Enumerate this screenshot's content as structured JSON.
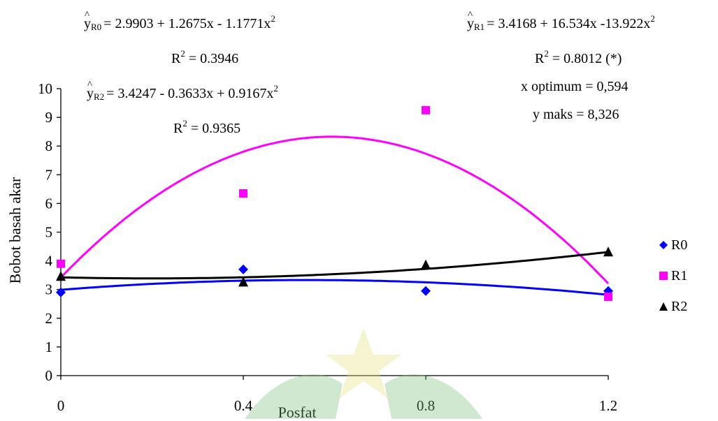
{
  "chart_data": {
    "type": "scatter",
    "xlabel": "Posfat",
    "ylabel": "Bobot basah akar",
    "x_ticks": [
      "0",
      "0.4",
      "0.8",
      "1.2"
    ],
    "y_ticks": [
      "0",
      "1",
      "2",
      "3",
      "4",
      "5",
      "6",
      "7",
      "8",
      "9",
      "10"
    ],
    "xlim": [
      0,
      1.2
    ],
    "ylim": [
      0,
      10
    ],
    "legend_position": "right",
    "grid": false,
    "x": [
      0,
      0.4,
      0.8,
      1.2
    ],
    "series": [
      {
        "name": "R0",
        "marker": "diamond",
        "color": "#0000ff",
        "values": [
          2.9,
          3.7,
          2.95,
          2.95
        ],
        "trend": {
          "intercept": 2.9903,
          "linear": 1.2675,
          "quadratic": -1.1771
        }
      },
      {
        "name": "R1",
        "marker": "square",
        "color": "#ff00ff",
        "values": [
          3.9,
          6.35,
          9.25,
          2.75
        ],
        "trend": {
          "intercept": 3.4168,
          "linear": 16.534,
          "quadratic": -13.922
        }
      },
      {
        "name": "R2",
        "marker": "triangle",
        "color": "#000000",
        "values": [
          3.45,
          3.25,
          3.85,
          4.3
        ],
        "trend": {
          "intercept": 3.4247,
          "linear": -0.3633,
          "quadratic": 0.9167
        }
      }
    ],
    "annotations": {
      "r0_eq": {
        "sub": "R0",
        "text": "= 2.9903 + 1.2675x - 1.1771x",
        "sup": "2"
      },
      "r0_r2": {
        "text": "= 0.3946"
      },
      "r2_eq": {
        "sub": "R2",
        "text": "= 3.4247 - 0.3633x + 0.9167x",
        "sup": "2"
      },
      "r2_r2": {
        "text": "= 0.9365"
      },
      "r1_eq": {
        "sub": "R1",
        "text": "= 3.4168 + 16.534x -13.922x",
        "sup": "2"
      },
      "r1_r2": {
        "text": "= 0.8012 (*)"
      },
      "x_opt": "x optimum = 0,594",
      "y_max": "y maks = 8,326"
    }
  }
}
